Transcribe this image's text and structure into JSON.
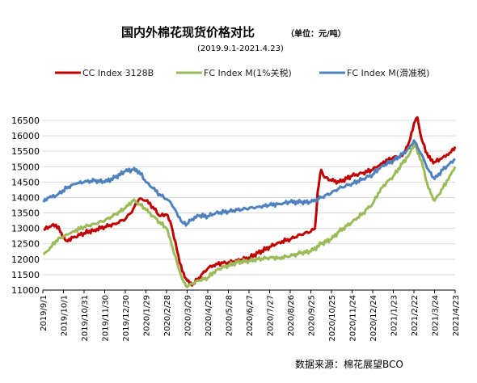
{
  "chart_data": {
    "type": "line",
    "title": "国内外棉花现货价格对比",
    "unit": "（单位：元/吨）",
    "subtitle": "(2019.9.1-2021.4.23)",
    "source": "数据来源：棉花展望BCO",
    "ylim": [
      11000,
      16500
    ],
    "y_ticks": [
      11000,
      11500,
      12000,
      12500,
      13000,
      13500,
      14000,
      14500,
      15000,
      15500,
      16000,
      16500
    ],
    "x_range": [
      "2019-09-01",
      "2021-04-23"
    ],
    "x_tick_labels": [
      "2019/9/1",
      "2019/10/1",
      "2019/10/31",
      "2019/11/30",
      "2019/12/30",
      "2020/1/29",
      "2020/2/28",
      "2020/3/29",
      "2020/4/28",
      "2020/5/28",
      "2020/6/27",
      "2020/7/27",
      "2020/8/26",
      "2020/9/25",
      "2020/10/25",
      "2020/11/24",
      "2020/12/24",
      "2021/1/23",
      "2021/2/22",
      "2021/3/24",
      "2021/4/23"
    ],
    "x_tick_dates": [
      "2019-09-01",
      "2019-10-01",
      "2019-10-31",
      "2019-11-30",
      "2019-12-30",
      "2020-01-29",
      "2020-02-28",
      "2020-03-29",
      "2020-04-28",
      "2020-05-28",
      "2020-06-27",
      "2020-07-27",
      "2020-08-26",
      "2020-09-25",
      "2020-10-25",
      "2020-11-24",
      "2020-12-24",
      "2021-01-23",
      "2021-02-22",
      "2021-03-24",
      "2021-04-23"
    ],
    "grid": "horizontal",
    "legend_position": "top",
    "series": [
      {
        "name": "CC Index 3128B",
        "color": "#c00000",
        "points": [
          [
            "2019-09-02",
            12950
          ],
          [
            "2019-09-10",
            13050
          ],
          [
            "2019-09-20",
            13120
          ],
          [
            "2019-09-28",
            12850
          ],
          [
            "2019-10-05",
            12600
          ],
          [
            "2019-10-15",
            12700
          ],
          [
            "2019-10-31",
            12850
          ],
          [
            "2019-11-15",
            12950
          ],
          [
            "2019-11-30",
            13050
          ],
          [
            "2019-12-15",
            13150
          ],
          [
            "2019-12-30",
            13300
          ],
          [
            "2020-01-10",
            13600
          ],
          [
            "2020-01-19",
            13950
          ],
          [
            "2020-01-29",
            13900
          ],
          [
            "2020-02-08",
            13700
          ],
          [
            "2020-02-18",
            13400
          ],
          [
            "2020-02-28",
            13450
          ],
          [
            "2020-03-06",
            13100
          ],
          [
            "2020-03-14",
            12300
          ],
          [
            "2020-03-22",
            11600
          ],
          [
            "2020-03-29",
            11300
          ],
          [
            "2020-04-05",
            11150
          ],
          [
            "2020-04-15",
            11400
          ],
          [
            "2020-04-28",
            11700
          ],
          [
            "2020-05-10",
            11850
          ],
          [
            "2020-05-28",
            11900
          ],
          [
            "2020-06-10",
            11950
          ],
          [
            "2020-06-27",
            12050
          ],
          [
            "2020-07-10",
            12200
          ],
          [
            "2020-07-27",
            12400
          ],
          [
            "2020-08-10",
            12550
          ],
          [
            "2020-08-26",
            12650
          ],
          [
            "2020-09-10",
            12800
          ],
          [
            "2020-09-25",
            12900
          ],
          [
            "2020-10-01",
            13000
          ],
          [
            "2020-10-05",
            14200
          ],
          [
            "2020-10-10",
            14900
          ],
          [
            "2020-10-15",
            14650
          ],
          [
            "2020-10-25",
            14550
          ],
          [
            "2020-11-05",
            14500
          ],
          [
            "2020-11-24",
            14700
          ],
          [
            "2020-12-10",
            14800
          ],
          [
            "2020-12-24",
            14900
          ],
          [
            "2021-01-05",
            15100
          ],
          [
            "2021-01-23",
            15300
          ],
          [
            "2021-02-05",
            15350
          ],
          [
            "2021-02-15",
            15800
          ],
          [
            "2021-02-22",
            16400
          ],
          [
            "2021-02-27",
            16600
          ],
          [
            "2021-03-05",
            15900
          ],
          [
            "2021-03-15",
            15300
          ],
          [
            "2021-03-24",
            15150
          ],
          [
            "2021-04-05",
            15300
          ],
          [
            "2021-04-15",
            15450
          ],
          [
            "2021-04-23",
            15650
          ]
        ]
      },
      {
        "name": "FC Index M(1%关税)",
        "color": "#9bbb59",
        "points": [
          [
            "2019-09-02",
            12150
          ],
          [
            "2019-09-10",
            12300
          ],
          [
            "2019-09-20",
            12600
          ],
          [
            "2019-09-28",
            12700
          ],
          [
            "2019-10-05",
            12800
          ],
          [
            "2019-10-15",
            12900
          ],
          [
            "2019-10-31",
            13050
          ],
          [
            "2019-11-15",
            13150
          ],
          [
            "2019-11-30",
            13250
          ],
          [
            "2019-12-15",
            13450
          ],
          [
            "2019-12-30",
            13650
          ],
          [
            "2020-01-10",
            13900
          ],
          [
            "2020-01-19",
            13800
          ],
          [
            "2020-01-29",
            13600
          ],
          [
            "2020-02-08",
            13400
          ],
          [
            "2020-02-18",
            13200
          ],
          [
            "2020-02-28",
            13000
          ],
          [
            "2020-03-06",
            12500
          ],
          [
            "2020-03-14",
            11900
          ],
          [
            "2020-03-22",
            11350
          ],
          [
            "2020-03-29",
            11100
          ],
          [
            "2020-04-05",
            11200
          ],
          [
            "2020-04-15",
            11300
          ],
          [
            "2020-04-28",
            11400
          ],
          [
            "2020-05-10",
            11650
          ],
          [
            "2020-05-28",
            11800
          ],
          [
            "2020-06-10",
            11900
          ],
          [
            "2020-06-27",
            11950
          ],
          [
            "2020-07-10",
            12000
          ],
          [
            "2020-07-27",
            12050
          ],
          [
            "2020-08-10",
            12050
          ],
          [
            "2020-08-26",
            12100
          ],
          [
            "2020-09-10",
            12200
          ],
          [
            "2020-09-25",
            12250
          ],
          [
            "2020-10-10",
            12500
          ],
          [
            "2020-10-25",
            12650
          ],
          [
            "2020-11-05",
            12900
          ],
          [
            "2020-11-24",
            13200
          ],
          [
            "2020-12-10",
            13500
          ],
          [
            "2020-12-24",
            13800
          ],
          [
            "2021-01-05",
            14300
          ],
          [
            "2021-01-23",
            14700
          ],
          [
            "2021-02-05",
            15100
          ],
          [
            "2021-02-15",
            15400
          ],
          [
            "2021-02-22",
            15750
          ],
          [
            "2021-03-05",
            15200
          ],
          [
            "2021-03-15",
            14300
          ],
          [
            "2021-03-24",
            13900
          ],
          [
            "2021-04-05",
            14300
          ],
          [
            "2021-04-15",
            14700
          ],
          [
            "2021-04-23",
            15000
          ]
        ]
      },
      {
        "name": "FC Index M(滑准税)",
        "color": "#4f81bd",
        "points": [
          [
            "2019-09-02",
            13850
          ],
          [
            "2019-09-10",
            14000
          ],
          [
            "2019-09-20",
            14050
          ],
          [
            "2019-10-08",
            14350
          ],
          [
            "2019-10-20",
            14450
          ],
          [
            "2019-10-31",
            14500
          ],
          [
            "2019-11-15",
            14550
          ],
          [
            "2019-11-30",
            14500
          ],
          [
            "2019-12-15",
            14650
          ],
          [
            "2019-12-30",
            14850
          ],
          [
            "2020-01-10",
            14900
          ],
          [
            "2020-01-19",
            14850
          ],
          [
            "2020-01-29",
            14500
          ],
          [
            "2020-02-08",
            14300
          ],
          [
            "2020-02-18",
            14100
          ],
          [
            "2020-02-28",
            13950
          ],
          [
            "2020-03-06",
            13800
          ],
          [
            "2020-03-14",
            13500
          ],
          [
            "2020-03-22",
            13200
          ],
          [
            "2020-03-29",
            13150
          ],
          [
            "2020-04-05",
            13300
          ],
          [
            "2020-04-15",
            13400
          ],
          [
            "2020-04-28",
            13400
          ],
          [
            "2020-05-10",
            13500
          ],
          [
            "2020-05-28",
            13550
          ],
          [
            "2020-06-10",
            13600
          ],
          [
            "2020-06-27",
            13650
          ],
          [
            "2020-07-10",
            13700
          ],
          [
            "2020-07-27",
            13750
          ],
          [
            "2020-08-10",
            13800
          ],
          [
            "2020-08-26",
            13850
          ],
          [
            "2020-09-10",
            13850
          ],
          [
            "2020-09-25",
            13850
          ],
          [
            "2020-10-10",
            14000
          ],
          [
            "2020-10-25",
            14150
          ],
          [
            "2020-11-05",
            14300
          ],
          [
            "2020-11-24",
            14450
          ],
          [
            "2020-12-10",
            14600
          ],
          [
            "2020-12-24",
            14750
          ],
          [
            "2021-01-05",
            15000
          ],
          [
            "2021-01-23",
            15200
          ],
          [
            "2021-02-05",
            15400
          ],
          [
            "2021-02-15",
            15600
          ],
          [
            "2021-02-22",
            15850
          ],
          [
            "2021-03-05",
            15400
          ],
          [
            "2021-03-15",
            14900
          ],
          [
            "2021-03-24",
            14600
          ],
          [
            "2021-04-05",
            14900
          ],
          [
            "2021-04-15",
            15100
          ],
          [
            "2021-04-23",
            15250
          ]
        ]
      }
    ]
  }
}
